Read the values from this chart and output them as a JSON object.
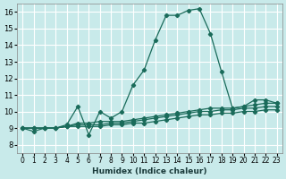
{
  "xlabel": "Humidex (Indice chaleur)",
  "xlim": [
    -0.5,
    23.5
  ],
  "ylim": [
    7.5,
    16.5
  ],
  "yticks": [
    8,
    9,
    10,
    11,
    12,
    13,
    14,
    15,
    16
  ],
  "xtick_labels": [
    "0",
    "1",
    "2",
    "3",
    "4",
    "5",
    "6",
    "7",
    "8",
    "9",
    "10",
    "11",
    "12",
    "13",
    "14",
    "15",
    "16",
    "17",
    "18",
    "19",
    "20",
    "21",
    "22",
    "23"
  ],
  "bg_color": "#c8eaea",
  "grid_color": "#ffffff",
  "line_color": "#1a6b5a",
  "lines": [
    [
      9.0,
      8.8,
      9.0,
      9.0,
      9.2,
      10.3,
      8.6,
      10.0,
      9.6,
      10.0,
      11.6,
      12.5,
      14.3,
      15.8,
      15.8,
      16.1,
      16.2,
      14.7,
      12.4,
      10.2,
      10.3,
      10.7,
      10.7,
      10.5
    ],
    [
      9.0,
      9.0,
      9.0,
      9.0,
      9.1,
      9.3,
      9.3,
      9.4,
      9.4,
      9.4,
      9.5,
      9.6,
      9.7,
      9.8,
      9.9,
      10.0,
      10.1,
      10.2,
      10.2,
      10.2,
      10.3,
      10.4,
      10.5,
      10.5
    ],
    [
      9.0,
      9.0,
      9.0,
      9.0,
      9.1,
      9.2,
      9.2,
      9.2,
      9.3,
      9.3,
      9.4,
      9.5,
      9.6,
      9.7,
      9.8,
      9.9,
      10.0,
      10.0,
      10.1,
      10.1,
      10.2,
      10.2,
      10.3,
      10.3
    ],
    [
      9.0,
      9.0,
      9.0,
      9.0,
      9.1,
      9.1,
      9.1,
      9.1,
      9.2,
      9.2,
      9.3,
      9.3,
      9.4,
      9.5,
      9.6,
      9.7,
      9.8,
      9.8,
      9.9,
      9.9,
      10.0,
      10.0,
      10.1,
      10.1
    ]
  ]
}
